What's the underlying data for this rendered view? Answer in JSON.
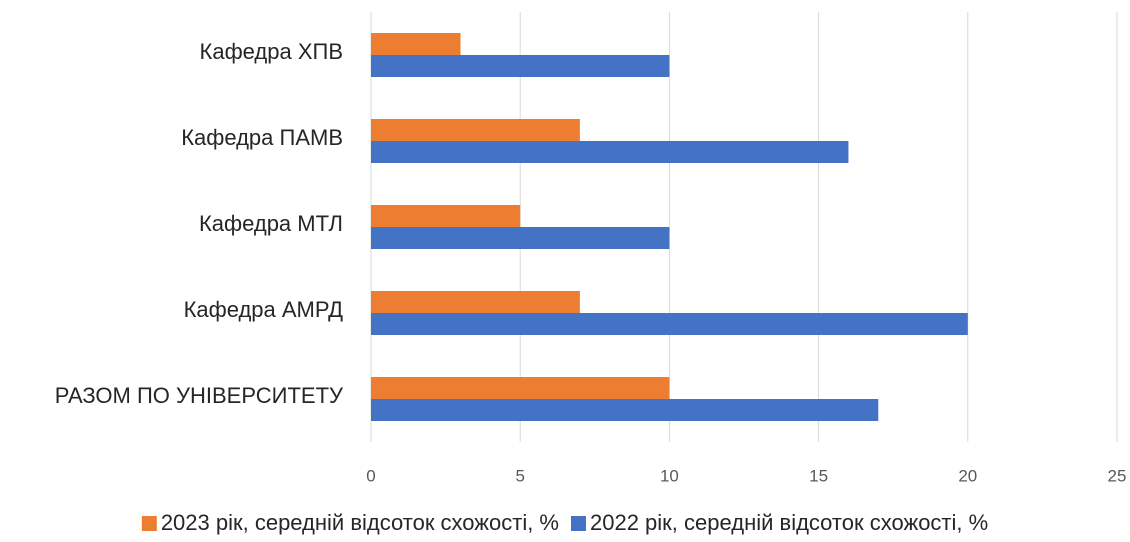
{
  "chart_data": {
    "type": "bar",
    "orientation": "horizontal",
    "categories": [
      "Кафедра ХПВ",
      "Кафедра ПАМВ",
      "Кафедра МТЛ",
      "Кафедра АМРД",
      "РАЗОМ ПО УНІВЕРСИТЕТУ"
    ],
    "series": [
      {
        "name": "2023 рік, середній відсоток схожості, %",
        "color": "#ed7d31",
        "values": [
          3,
          7,
          5,
          7,
          10
        ]
      },
      {
        "name": "2022 рік, середній відсоток схожості, %",
        "color": "#4472c4",
        "values": [
          10,
          16,
          10,
          20,
          17
        ]
      }
    ],
    "xlim": [
      0,
      25
    ],
    "xticks": [
      0,
      5,
      10,
      15,
      20,
      25
    ],
    "grid": true,
    "legend": "bottom"
  }
}
